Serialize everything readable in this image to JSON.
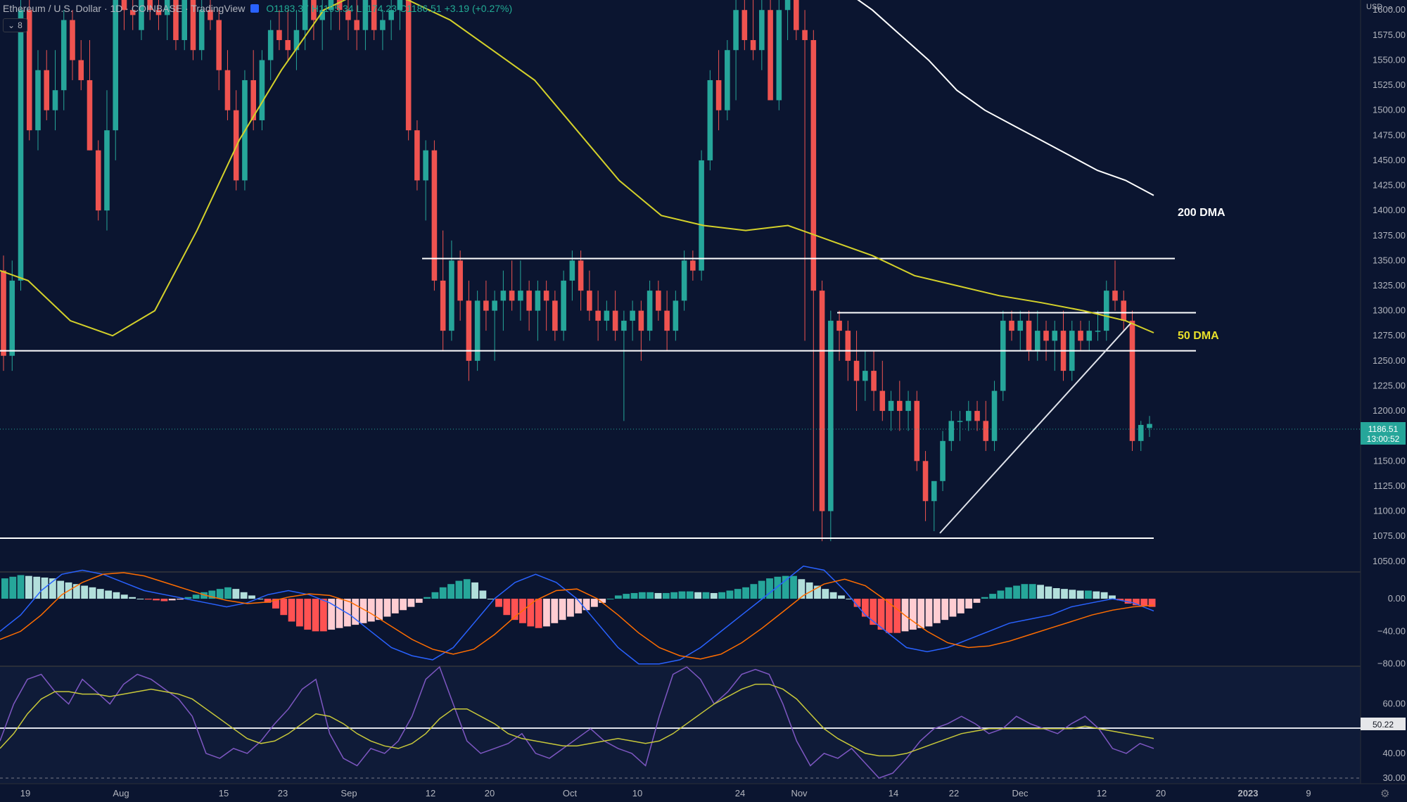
{
  "header": {
    "symbol": "Ethereum / U.S. Dollar · 1D · COINBASE · TradingView",
    "open": "O1183.37",
    "high": "H1195.34",
    "low": "L1174.23",
    "close": "C1186.51",
    "change": "+3.19 (+0.27%)",
    "indicator_count": "8",
    "currency": "USD"
  },
  "price_tag": {
    "price": "1186.51",
    "countdown": "13:00:52"
  },
  "rsi_tag": "50.22",
  "colors": {
    "background": "#0b1530",
    "up": "#26a69a",
    "down": "#ef5350",
    "dma50": "#d4d12a",
    "dma200": "#ffffff",
    "macd": "#2962ff",
    "signal": "#ff6d00",
    "rsi": "#7e57c2",
    "rsi_ma": "#c8c83a"
  },
  "chart_data": {
    "type": "candlestick",
    "symbol": "ETH/USD",
    "timeframe": "1D",
    "ylim": [
      1040,
      1610
    ],
    "price_ticks": [
      "1600.00",
      "1575.00",
      "1550.00",
      "1525.00",
      "1500.00",
      "1475.00",
      "1450.00",
      "1425.00",
      "1400.00",
      "1375.00",
      "1350.00",
      "1325.00",
      "1300.00",
      "1275.00",
      "1250.00",
      "1225.00",
      "1200.00",
      "1175.00",
      "1150.00",
      "1125.00",
      "1100.00",
      "1075.00",
      "1050.00"
    ],
    "time_labels": [
      "19",
      "Aug",
      "15",
      "23",
      "Sep",
      "12",
      "20",
      "Oct",
      "10",
      "24",
      "Nov",
      "14",
      "22",
      "Dec",
      "12",
      "20",
      "2023",
      "9"
    ],
    "candles_ohlc": [
      [
        1340,
        1355,
        1240,
        1255
      ],
      [
        1255,
        1350,
        1240,
        1330
      ],
      [
        1330,
        1620,
        1320,
        1600
      ],
      [
        1600,
        1620,
        1470,
        1480
      ],
      [
        1480,
        1560,
        1460,
        1540
      ],
      [
        1540,
        1560,
        1490,
        1500
      ],
      [
        1500,
        1560,
        1480,
        1520
      ],
      [
        1520,
        1600,
        1500,
        1590
      ],
      [
        1590,
        1600,
        1530,
        1550
      ],
      [
        1550,
        1570,
        1520,
        1530
      ],
      [
        1530,
        1570,
        1460,
        1460
      ],
      [
        1460,
        1470,
        1390,
        1400
      ],
      [
        1400,
        1520,
        1380,
        1480
      ],
      [
        1480,
        1620,
        1450,
        1610
      ],
      [
        1610,
        1620,
        1580,
        1600
      ],
      [
        1600,
        1620,
        1580,
        1595
      ],
      [
        1580,
        1620,
        1570,
        1610
      ],
      [
        1610,
        1620,
        1590,
        1600
      ],
      [
        1600,
        1620,
        1580,
        1595
      ],
      [
        1595,
        1620,
        1570,
        1610
      ],
      [
        1610,
        1620,
        1560,
        1570
      ],
      [
        1570,
        1620,
        1560,
        1610
      ],
      [
        1610,
        1620,
        1550,
        1560
      ],
      [
        1560,
        1620,
        1550,
        1600
      ],
      [
        1600,
        1620,
        1580,
        1590
      ],
      [
        1590,
        1600,
        1520,
        1540
      ],
      [
        1540,
        1560,
        1490,
        1500
      ],
      [
        1500,
        1520,
        1420,
        1430
      ],
      [
        1430,
        1540,
        1420,
        1530
      ],
      [
        1530,
        1560,
        1480,
        1490
      ],
      [
        1490,
        1560,
        1480,
        1550
      ],
      [
        1550,
        1590,
        1530,
        1580
      ],
      [
        1580,
        1600,
        1560,
        1570
      ],
      [
        1570,
        1600,
        1550,
        1560
      ],
      [
        1560,
        1600,
        1540,
        1580
      ],
      [
        1580,
        1620,
        1560,
        1610
      ],
      [
        1610,
        1620,
        1570,
        1590
      ],
      [
        1590,
        1620,
        1560,
        1600
      ],
      [
        1600,
        1620,
        1580,
        1610
      ],
      [
        1610,
        1620,
        1580,
        1600
      ],
      [
        1600,
        1620,
        1570,
        1590
      ],
      [
        1590,
        1620,
        1560,
        1580
      ],
      [
        1580,
        1620,
        1560,
        1610
      ],
      [
        1610,
        1620,
        1570,
        1580
      ],
      [
        1580,
        1600,
        1560,
        1590
      ],
      [
        1590,
        1610,
        1570,
        1600
      ],
      [
        1600,
        1620,
        1580,
        1610
      ],
      [
        1610,
        1620,
        1470,
        1480
      ],
      [
        1480,
        1490,
        1420,
        1430
      ],
      [
        1430,
        1470,
        1390,
        1460
      ],
      [
        1460,
        1470,
        1320,
        1330
      ],
      [
        1330,
        1380,
        1260,
        1280
      ],
      [
        1280,
        1370,
        1270,
        1350
      ],
      [
        1350,
        1360,
        1290,
        1310
      ],
      [
        1310,
        1330,
        1230,
        1250
      ],
      [
        1250,
        1320,
        1240,
        1310
      ],
      [
        1310,
        1330,
        1280,
        1300
      ],
      [
        1300,
        1320,
        1250,
        1310
      ],
      [
        1310,
        1340,
        1280,
        1320
      ],
      [
        1320,
        1350,
        1300,
        1310
      ],
      [
        1310,
        1350,
        1290,
        1320
      ],
      [
        1320,
        1330,
        1280,
        1300
      ],
      [
        1300,
        1330,
        1270,
        1320
      ],
      [
        1320,
        1330,
        1280,
        1310
      ],
      [
        1310,
        1320,
        1270,
        1280
      ],
      [
        1280,
        1340,
        1270,
        1330
      ],
      [
        1330,
        1360,
        1310,
        1350
      ],
      [
        1350,
        1360,
        1300,
        1320
      ],
      [
        1320,
        1340,
        1290,
        1300
      ],
      [
        1300,
        1320,
        1270,
        1290
      ],
      [
        1290,
        1310,
        1280,
        1300
      ],
      [
        1300,
        1320,
        1270,
        1280
      ],
      [
        1280,
        1300,
        1190,
        1290
      ],
      [
        1290,
        1310,
        1270,
        1300
      ],
      [
        1300,
        1310,
        1250,
        1280
      ],
      [
        1280,
        1330,
        1270,
        1320
      ],
      [
        1320,
        1330,
        1290,
        1300
      ],
      [
        1300,
        1320,
        1260,
        1280
      ],
      [
        1280,
        1320,
        1270,
        1310
      ],
      [
        1310,
        1360,
        1300,
        1350
      ],
      [
        1350,
        1360,
        1330,
        1340
      ],
      [
        1340,
        1460,
        1330,
        1450
      ],
      [
        1450,
        1540,
        1440,
        1530
      ],
      [
        1530,
        1560,
        1480,
        1500
      ],
      [
        1500,
        1570,
        1490,
        1560
      ],
      [
        1560,
        1620,
        1510,
        1600
      ],
      [
        1600,
        1620,
        1560,
        1570
      ],
      [
        1570,
        1620,
        1550,
        1560
      ],
      [
        1560,
        1620,
        1540,
        1600
      ],
      [
        1600,
        1620,
        1520,
        1510
      ],
      [
        1510,
        1620,
        1500,
        1600
      ],
      [
        1600,
        1630,
        1570,
        1610
      ],
      [
        1610,
        1630,
        1570,
        1580
      ],
      [
        1580,
        1600,
        1270,
        1570
      ],
      [
        1570,
        1580,
        1100,
        1320
      ],
      [
        1320,
        1330,
        1070,
        1100
      ],
      [
        1100,
        1300,
        1070,
        1290
      ],
      [
        1290,
        1300,
        1250,
        1280
      ],
      [
        1280,
        1290,
        1230,
        1250
      ],
      [
        1250,
        1280,
        1200,
        1230
      ],
      [
        1230,
        1260,
        1210,
        1240
      ],
      [
        1240,
        1260,
        1200,
        1220
      ],
      [
        1220,
        1250,
        1190,
        1200
      ],
      [
        1200,
        1220,
        1180,
        1210
      ],
      [
        1210,
        1230,
        1180,
        1200
      ],
      [
        1200,
        1220,
        1180,
        1210
      ],
      [
        1210,
        1220,
        1140,
        1150
      ],
      [
        1150,
        1160,
        1090,
        1110
      ],
      [
        1110,
        1120,
        1080,
        1130
      ],
      [
        1130,
        1180,
        1120,
        1170
      ],
      [
        1170,
        1200,
        1160,
        1190
      ],
      [
        1190,
        1200,
        1170,
        1190
      ],
      [
        1190,
        1210,
        1180,
        1200
      ],
      [
        1200,
        1210,
        1180,
        1190
      ],
      [
        1190,
        1210,
        1160,
        1170
      ],
      [
        1170,
        1230,
        1160,
        1220
      ],
      [
        1220,
        1300,
        1210,
        1290
      ],
      [
        1290,
        1300,
        1270,
        1280
      ],
      [
        1280,
        1300,
        1260,
        1290
      ],
      [
        1290,
        1300,
        1250,
        1260
      ],
      [
        1260,
        1300,
        1250,
        1280
      ],
      [
        1280,
        1290,
        1250,
        1270
      ],
      [
        1270,
        1290,
        1240,
        1280
      ],
      [
        1280,
        1300,
        1230,
        1240
      ],
      [
        1240,
        1290,
        1230,
        1280
      ],
      [
        1280,
        1290,
        1260,
        1270
      ],
      [
        1270,
        1290,
        1260,
        1280
      ],
      [
        1280,
        1300,
        1270,
        1280
      ],
      [
        1280,
        1330,
        1270,
        1320
      ],
      [
        1320,
        1350,
        1300,
        1310
      ],
      [
        1310,
        1320,
        1280,
        1290
      ],
      [
        1290,
        1300,
        1160,
        1170
      ],
      [
        1170,
        1190,
        1160,
        1186
      ],
      [
        1183,
        1195,
        1174,
        1187
      ]
    ],
    "dma50": {
      "name": "50 DMA",
      "x_pct": [
        0,
        2,
        5,
        8,
        11,
        14,
        17,
        20,
        23,
        26,
        29,
        32,
        35,
        38,
        41,
        44,
        47,
        50,
        53,
        56,
        59,
        62,
        65,
        68,
        71,
        74,
        77,
        80,
        82
      ],
      "values": [
        1340,
        1330,
        1290,
        1275,
        1300,
        1380,
        1470,
        1540,
        1600,
        1620,
        1610,
        1590,
        1560,
        1530,
        1480,
        1430,
        1395,
        1385,
        1380,
        1385,
        1370,
        1355,
        1335,
        1325,
        1315,
        1308,
        1300,
        1290,
        1278
      ]
    },
    "dma200": {
      "name": "200 DMA",
      "x_pct": [
        60,
        62,
        64,
        66,
        68,
        70,
        72,
        74,
        76,
        78,
        80,
        82
      ],
      "values": [
        1620,
        1600,
        1575,
        1550,
        1520,
        1500,
        1485,
        1470,
        1455,
        1440,
        1430,
        1415
      ]
    },
    "levels": [
      {
        "price": 1352,
        "x_from_pct": 30,
        "x_to_pct": 83.5
      },
      {
        "price": 1298,
        "x_from_pct": 59.5,
        "x_to_pct": 85
      },
      {
        "price": 1260,
        "x_from_pct": 0,
        "x_to_pct": 85
      },
      {
        "price": 1073,
        "x_from_pct": 0,
        "x_to_pct": 82
      }
    ],
    "trendline": {
      "x_from_pct": 66.8,
      "p_from": 1078,
      "x_to_pct": 80.4,
      "p_to": 1288
    },
    "labels": [
      "200 DMA",
      "50 DMA"
    ],
    "macd": {
      "ylim": [
        -82,
        32
      ],
      "ticks": [
        "0.00",
        "−40.00",
        "−80.00"
      ],
      "histogram": [
        25,
        27,
        29,
        28,
        27,
        26,
        25,
        22,
        20,
        18,
        16,
        14,
        12,
        10,
        8,
        5,
        2,
        0,
        -1,
        -2,
        -3,
        -2,
        -1,
        2,
        5,
        8,
        10,
        12,
        14,
        12,
        8,
        4,
        0,
        -5,
        -12,
        -20,
        -28,
        -34,
        -38,
        -40,
        -40,
        -38,
        -36,
        -34,
        -32,
        -30,
        -28,
        -26,
        -22,
        -18,
        -14,
        -10,
        -5,
        2,
        8,
        14,
        18,
        22,
        24,
        20,
        10,
        0,
        -10,
        -20,
        -26,
        -30,
        -34,
        -36,
        -34,
        -30,
        -26,
        -22,
        -18,
        -14,
        -10,
        -5,
        0,
        4,
        6,
        7,
        8,
        8,
        7,
        7,
        8,
        9,
        9,
        8,
        8,
        7,
        8,
        10,
        12,
        14,
        18,
        22,
        25,
        27,
        28,
        28,
        24,
        20,
        16,
        12,
        8,
        4,
        0,
        -10,
        -22,
        -32,
        -38,
        -42,
        -42,
        -40,
        -38,
        -36,
        -34,
        -30,
        -26,
        -22,
        -18,
        -12,
        -5,
        2,
        6,
        10,
        14,
        16,
        18,
        18,
        17,
        15,
        13,
        12,
        11,
        10,
        10,
        9,
        8,
        4,
        -2,
        -6,
        -8,
        -9,
        -10
      ],
      "macd_line": [
        -40,
        -20,
        10,
        30,
        35,
        30,
        20,
        10,
        5,
        0,
        -5,
        -10,
        -5,
        5,
        10,
        5,
        -5,
        -20,
        -40,
        -60,
        -70,
        -75,
        -60,
        -30,
        0,
        20,
        30,
        20,
        0,
        -30,
        -60,
        -80,
        -80,
        -75,
        -60,
        -40,
        -20,
        0,
        20,
        40,
        35,
        10,
        -20,
        -40,
        -60,
        -65,
        -60,
        -50,
        -40,
        -30,
        -25,
        -20,
        -10,
        -5,
        0,
        -5,
        -15
      ],
      "signal_line": [
        -50,
        -40,
        -20,
        5,
        20,
        30,
        32,
        28,
        20,
        12,
        4,
        -2,
        -6,
        -4,
        2,
        6,
        4,
        -4,
        -18,
        -34,
        -50,
        -62,
        -68,
        -62,
        -44,
        -22,
        -2,
        10,
        12,
        0,
        -20,
        -42,
        -60,
        -70,
        -74,
        -68,
        -54,
        -36,
        -16,
        4,
        18,
        24,
        16,
        -2,
        -22,
        -40,
        -54,
        -60,
        -58,
        -52,
        -44,
        -36,
        -28,
        -20,
        -14,
        -10,
        -8
      ]
    },
    "rsi": {
      "ylim": [
        28,
        75
      ],
      "ticks": [
        "60.00",
        "40.00",
        "30.00"
      ],
      "midline": 50.22,
      "rsi_line": [
        45,
        60,
        70,
        72,
        65,
        60,
        70,
        65,
        60,
        68,
        72,
        70,
        66,
        62,
        55,
        40,
        38,
        42,
        40,
        45,
        52,
        58,
        66,
        70,
        48,
        38,
        35,
        42,
        40,
        45,
        55,
        70,
        75,
        60,
        45,
        40,
        42,
        44,
        48,
        40,
        38,
        42,
        46,
        50,
        45,
        42,
        40,
        35,
        55,
        72,
        75,
        70,
        60,
        65,
        72,
        74,
        72,
        60,
        45,
        35,
        40,
        38,
        42,
        36,
        30,
        32,
        38,
        45,
        50,
        52,
        55,
        52,
        48,
        50,
        55,
        52,
        50,
        48,
        52,
        55,
        50,
        42,
        40,
        44,
        42
      ],
      "rsi_ma": [
        42,
        48,
        56,
        62,
        65,
        65,
        64,
        64,
        63,
        64,
        65,
        66,
        65,
        64,
        62,
        58,
        54,
        50,
        46,
        44,
        45,
        48,
        52,
        56,
        55,
        52,
        48,
        45,
        43,
        42,
        44,
        48,
        54,
        58,
        58,
        55,
        52,
        48,
        46,
        45,
        44,
        43,
        43,
        44,
        45,
        46,
        45,
        44,
        45,
        48,
        52,
        56,
        60,
        63,
        66,
        68,
        68,
        66,
        62,
        56,
        50,
        46,
        43,
        40,
        39,
        39,
        40,
        42,
        44,
        46,
        48,
        49,
        50,
        50,
        50,
        50,
        50,
        50,
        50,
        51,
        50,
        49,
        48,
        47,
        46
      ]
    }
  }
}
